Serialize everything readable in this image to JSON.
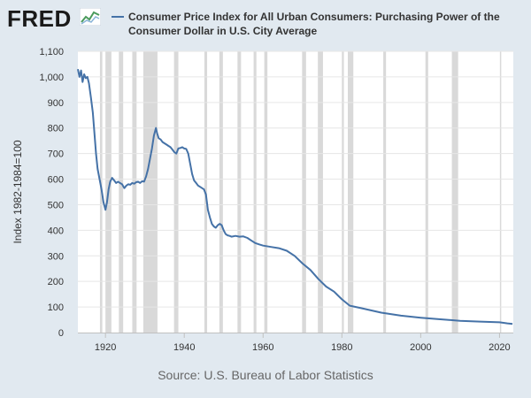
{
  "brand": {
    "logo_text": "FRED",
    "logo_icon": "line-chart-icon"
  },
  "chart_data": {
    "type": "line",
    "title": "Consumer Price Index for All Urban Consumers: Purchasing Power of the Consumer Dollar in U.S. City Average",
    "ylabel": "Index 1982-1984=100",
    "xlabel": "",
    "xlim": [
      1913,
      2023.5
    ],
    "ylim": [
      0,
      1100
    ],
    "y_ticks": [
      0,
      100,
      200,
      300,
      400,
      500,
      600,
      700,
      800,
      900,
      1000,
      1100
    ],
    "y_tick_labels": [
      "0",
      "100",
      "200",
      "300",
      "400",
      "500",
      "600",
      "700",
      "800",
      "900",
      "1,000",
      "1,100"
    ],
    "x_ticks": [
      1920,
      1940,
      1960,
      1980,
      2000,
      2020
    ],
    "x_tick_labels": [
      "1920",
      "1940",
      "1960",
      "1980",
      "2000",
      "2020"
    ],
    "grid": "horizontal",
    "colors": {
      "line": "#4572a7",
      "recession": "#d9d9d9",
      "plot_bg": "#ffffff",
      "page_bg": "#e1e9f0"
    },
    "recessions": [
      [
        1918.6,
        1919.2
      ],
      [
        1920.0,
        1921.5
      ],
      [
        1923.4,
        1924.5
      ],
      [
        1926.8,
        1927.9
      ],
      [
        1929.6,
        1933.2
      ],
      [
        1937.4,
        1938.5
      ],
      [
        1945.1,
        1945.8
      ],
      [
        1948.9,
        1949.8
      ],
      [
        1953.5,
        1954.4
      ],
      [
        1957.6,
        1958.3
      ],
      [
        1960.3,
        1961.1
      ],
      [
        1969.9,
        1970.9
      ],
      [
        1973.9,
        1975.2
      ],
      [
        1980.0,
        1980.5
      ],
      [
        1981.5,
        1982.9
      ],
      [
        1990.5,
        1991.2
      ],
      [
        2001.2,
        2001.9
      ],
      [
        2007.9,
        2009.5
      ],
      [
        2020.1,
        2020.4
      ]
    ],
    "series": [
      {
        "x": [
          1913,
          1913.4,
          1913.8,
          1914.2,
          1914.6,
          1915,
          1915.4,
          1915.8,
          1916.3,
          1916.8,
          1917.2,
          1917.6,
          1918,
          1918.5,
          1919,
          1919.5,
          1920,
          1920.4,
          1920.8,
          1921.2,
          1921.7,
          1922.2,
          1922.7,
          1923.2,
          1923.7,
          1924.2,
          1924.8,
          1925.3,
          1925.8,
          1926.3,
          1926.8,
          1927.3,
          1927.8,
          1928.3,
          1928.8,
          1929.3,
          1929.8,
          1930.3,
          1930.8,
          1931.3,
          1931.8,
          1932.3,
          1932.8,
          1933.1,
          1933.5,
          1934,
          1934.5,
          1935,
          1935.5,
          1936,
          1936.5,
          1937,
          1937.5,
          1938,
          1938.5,
          1939,
          1939.5,
          1940,
          1940.5,
          1941,
          1941.5,
          1942,
          1942.5,
          1943,
          1943.5,
          1944,
          1944.5,
          1945,
          1945.5,
          1946,
          1946.5,
          1947,
          1947.5,
          1948,
          1948.5,
          1949,
          1949.5,
          1950,
          1950.5,
          1951,
          1951.5,
          1952,
          1953,
          1954,
          1955,
          1956,
          1957,
          1958,
          1959,
          1960,
          1962,
          1964,
          1966,
          1968,
          1970,
          1972,
          1974,
          1976,
          1978,
          1980,
          1982,
          1985,
          1990,
          1995,
          2000,
          2005,
          2010,
          2015,
          2020,
          2021,
          2022,
          2023.3
        ],
        "y": [
          1030,
          1000,
          1025,
          980,
          1010,
          995,
          1000,
          975,
          920,
          860,
          780,
          700,
          640,
          600,
          560,
          510,
          480,
          510,
          560,
          590,
          605,
          595,
          585,
          590,
          585,
          580,
          565,
          575,
          580,
          578,
          585,
          582,
          588,
          590,
          585,
          592,
          590,
          610,
          640,
          680,
          720,
          770,
          800,
          780,
          760,
          755,
          745,
          740,
          735,
          730,
          725,
          715,
          705,
          700,
          720,
          722,
          725,
          720,
          718,
          700,
          660,
          620,
          595,
          585,
          575,
          570,
          565,
          560,
          540,
          480,
          450,
          425,
          415,
          410,
          420,
          425,
          420,
          400,
          385,
          380,
          378,
          375,
          378,
          375,
          376,
          370,
          360,
          350,
          345,
          340,
          335,
          330,
          320,
          300,
          270,
          245,
          210,
          180,
          160,
          130,
          105,
          95,
          78,
          66,
          58,
          52,
          46,
          43,
          40,
          38,
          36,
          34
        ]
      }
    ]
  },
  "source": "Source: U.S. Bureau of Labor Statistics"
}
